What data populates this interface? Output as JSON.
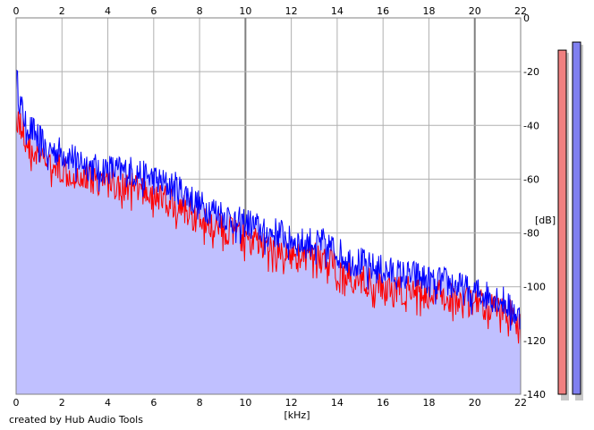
{
  "credit": "created by Hub Audio Tools",
  "chart_data": {
    "type": "area",
    "xlabel": "[kHz]",
    "ylabel": "[dB]",
    "xlim": [
      0,
      22
    ],
    "ylim": [
      -140,
      0
    ],
    "x_ticks": [
      0,
      2,
      4,
      6,
      8,
      10,
      12,
      14,
      16,
      18,
      20,
      22
    ],
    "y_ticks": [
      0,
      -20,
      -40,
      -60,
      -80,
      -100,
      -120,
      -140
    ],
    "y_tick_labels": [
      "0",
      "-20",
      "-40",
      "-60",
      "-80",
      "-100",
      "-120",
      "-140"
    ],
    "grid": true,
    "series": [
      {
        "color": "#0000ff",
        "fill": "#c0c0ff",
        "x": [
          0,
          0.1,
          0.2,
          0.4,
          0.6,
          0.8,
          1,
          1.2,
          1.5,
          2,
          2.5,
          3,
          3.5,
          4,
          4.5,
          5,
          5.5,
          6,
          6.5,
          7,
          7.5,
          8,
          8.5,
          9,
          9.5,
          10,
          10.5,
          11,
          11.5,
          12,
          12.5,
          13,
          13.5,
          14,
          14.5,
          15,
          15.5,
          16,
          16.5,
          17,
          17.5,
          18,
          18.5,
          19,
          19.5,
          20,
          20.5,
          21,
          21.5,
          22
        ],
        "values": [
          -22,
          -27,
          -33,
          -38,
          -41,
          -43,
          -45,
          -47,
          -49,
          -50,
          -52,
          -54,
          -56,
          -56,
          -57,
          -57,
          -58,
          -60,
          -62,
          -63,
          -66,
          -70,
          -71,
          -73,
          -75,
          -76,
          -78,
          -80,
          -80,
          -82,
          -84,
          -83,
          -84,
          -87,
          -90,
          -91,
          -93,
          -94,
          -95,
          -96,
          -96,
          -98,
          -98,
          -99,
          -101,
          -102,
          -103,
          -104,
          -107,
          -112
        ]
      },
      {
        "color": "#ff0000",
        "x": [
          0,
          0.2,
          0.4,
          0.6,
          0.8,
          1,
          1.5,
          2,
          2.5,
          3,
          3.5,
          4,
          4.5,
          5,
          5.5,
          6,
          6.5,
          7,
          7.5,
          8,
          8.5,
          9,
          9.5,
          10,
          10.5,
          11,
          11.5,
          12,
          12.5,
          13,
          13.5,
          14,
          14.5,
          15,
          15.5,
          16,
          16.5,
          17,
          17.5,
          18,
          18.5,
          19,
          19.5,
          20,
          20.5,
          21,
          21.5,
          22
        ],
        "values": [
          -36,
          -40,
          -45,
          -48,
          -50,
          -52,
          -54,
          -56,
          -58,
          -59,
          -60,
          -61,
          -62,
          -63,
          -64,
          -66,
          -68,
          -70,
          -72,
          -75,
          -77,
          -78,
          -80,
          -82,
          -84,
          -86,
          -86,
          -88,
          -90,
          -88,
          -90,
          -93,
          -96,
          -97,
          -99,
          -101,
          -102,
          -101,
          -102,
          -103,
          -103,
          -104,
          -106,
          -106,
          -107,
          -108,
          -110,
          -113
        ]
      }
    ]
  },
  "meters": [
    {
      "level_db": -12,
      "fill": "#f08080",
      "border": "#000000"
    },
    {
      "level_db": -9,
      "fill": "#8080f0",
      "border": "#000000"
    }
  ]
}
